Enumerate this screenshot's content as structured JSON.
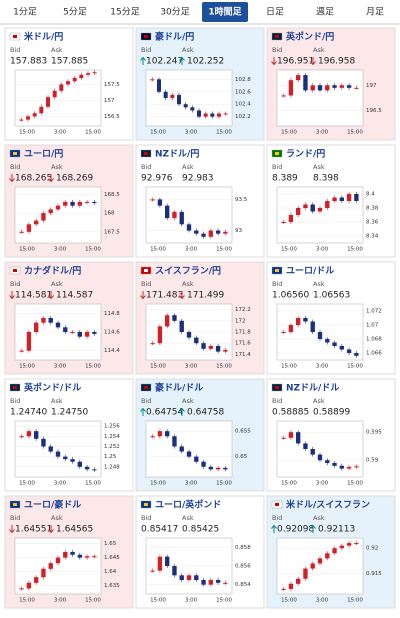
{
  "tabs": [
    {
      "label": "1分足"
    },
    {
      "label": "5分足"
    },
    {
      "label": "15分足"
    },
    {
      "label": "30分足"
    },
    {
      "label": "1時間足",
      "active": true
    },
    {
      "label": "日足"
    },
    {
      "label": "週足"
    },
    {
      "label": "月足"
    }
  ],
  "labels": {
    "bid": "Bid",
    "ask": "Ask"
  },
  "cards": [
    {
      "name": "米ドル/円",
      "bid": "157.883",
      "ask": "157.885",
      "trend": null,
      "ylim": [
        156.2,
        157.95
      ],
      "yticks": [
        157.5,
        157,
        156.5
      ],
      "xticks": [
        "15:00",
        "3:00",
        "15:00"
      ],
      "values": [
        156.4,
        156.5,
        156.6,
        156.8,
        157.1,
        157.3,
        157.5,
        157.6,
        157.7,
        157.8,
        157.85,
        157.88
      ]
    },
    {
      "name": "豪ドル/円",
      "bid": "102.247",
      "ask": "102.252",
      "trend": "up",
      "ylim": [
        102.05,
        102.95
      ],
      "yticks": [
        102.8,
        102.6,
        102.4,
        102.2
      ],
      "xticks": [
        "15:00",
        "3:00",
        "15:00"
      ],
      "values": [
        102.8,
        102.6,
        102.5,
        102.55,
        102.4,
        102.35,
        102.3,
        102.2,
        102.25,
        102.2,
        102.25,
        102.25
      ]
    },
    {
      "name": "英ポンド/円",
      "bid": "196.951",
      "ask": "196.958",
      "trend": "down",
      "ylim": [
        196.2,
        197.3
      ],
      "yticks": [
        197,
        196.5
      ],
      "xticks": [
        "15:00",
        "3:00",
        "15:00"
      ],
      "values": [
        196.8,
        197.1,
        197.2,
        196.9,
        197.0,
        196.9,
        197.0,
        196.95,
        197.0,
        196.95,
        196.95
      ]
    },
    {
      "name": "ユーロ/円",
      "bid": "168.265",
      "ask": "168.269",
      "trend": "down",
      "ylim": [
        167.2,
        168.7
      ],
      "yticks": [
        168.5,
        168,
        167.5
      ],
      "xticks": [
        "15:00",
        "3:00",
        "15:00"
      ],
      "values": [
        167.5,
        167.7,
        167.8,
        168.0,
        168.1,
        168.2,
        168.3,
        168.2,
        168.3,
        168.3,
        168.27
      ]
    },
    {
      "name": "NZドル/円",
      "bid": "92.976",
      "ask": "92.983",
      "trend": null,
      "ylim": [
        92.8,
        93.7
      ],
      "yticks": [
        93.5,
        93
      ],
      "xticks": [
        "15:00",
        "3:00",
        "15:00"
      ],
      "values": [
        93.5,
        93.4,
        93.2,
        93.3,
        93.1,
        93.0,
        92.95,
        92.9,
        93.0,
        92.95,
        92.98
      ]
    },
    {
      "name": "ランド/円",
      "bid": "8.389",
      "ask": "8.398",
      "trend": null,
      "ylim": [
        8.33,
        8.41
      ],
      "yticks": [
        8.4,
        8.38,
        8.36,
        8.34
      ],
      "xticks": [
        "15:00",
        "3:00",
        "15:00"
      ],
      "values": [
        8.36,
        8.37,
        8.38,
        8.385,
        8.375,
        8.38,
        8.39,
        8.395,
        8.39,
        8.4,
        8.39
      ]
    },
    {
      "name": "カナダドル/円",
      "bid": "114.581",
      "ask": "114.587",
      "trend": "down",
      "ylim": [
        114.3,
        114.9
      ],
      "yticks": [
        114.8,
        114.6,
        114.4
      ],
      "xticks": [
        "15:00",
        "3:00",
        "15:00"
      ],
      "values": [
        114.4,
        114.6,
        114.7,
        114.75,
        114.7,
        114.65,
        114.6,
        114.6,
        114.55,
        114.6,
        114.58
      ]
    },
    {
      "name": "スイスフラン/円",
      "bid": "171.483",
      "ask": "171.499",
      "trend": "down",
      "ylim": [
        171.3,
        172.3
      ],
      "yticks": [
        172.2,
        172,
        171.8,
        171.6,
        171.4
      ],
      "xticks": [
        "15:00",
        "3:00",
        "15:00"
      ],
      "values": [
        171.6,
        171.9,
        172.1,
        172.0,
        171.8,
        171.7,
        171.6,
        171.5,
        171.55,
        171.45,
        171.48
      ]
    },
    {
      "name": "ユーロ/ドル",
      "bid": "1.06560",
      "ask": "1.06563",
      "trend": null,
      "ylim": [
        1.065,
        1.073
      ],
      "yticks": [
        1.072,
        1.07,
        1.068,
        1.066
      ],
      "xticks": [
        "15:00",
        "3:00",
        "15:00"
      ],
      "values": [
        1.069,
        1.07,
        1.071,
        1.0705,
        1.069,
        1.068,
        1.0675,
        1.067,
        1.0665,
        1.066,
        1.0656
      ]
    },
    {
      "name": "英ポンド/ドル",
      "bid": "1.24740",
      "ask": "1.24750",
      "trend": null,
      "ylim": [
        1.246,
        1.257
      ],
      "yticks": [
        1.256,
        1.254,
        1.252,
        1.25,
        1.248
      ],
      "xticks": [
        "15:00",
        "3:00",
        "15:00"
      ],
      "values": [
        1.254,
        1.255,
        1.2535,
        1.252,
        1.251,
        1.25,
        1.2495,
        1.249,
        1.248,
        1.2475,
        1.2474
      ]
    },
    {
      "name": "豪ドル/ドル",
      "bid": "0.64754",
      "ask": "0.64758",
      "trend": "up",
      "ylim": [
        0.646,
        0.657
      ],
      "yticks": [
        0.655,
        0.65
      ],
      "xticks": [
        "15:00",
        "3:00",
        "15:00"
      ],
      "values": [
        0.654,
        0.655,
        0.654,
        0.652,
        0.651,
        0.65,
        0.649,
        0.648,
        0.6475,
        0.6478,
        0.6475
      ]
    },
    {
      "name": "NZドル/ドル",
      "bid": "0.58885",
      "ask": "0.58899",
      "trend": null,
      "ylim": [
        0.587,
        0.597
      ],
      "yticks": [
        0.595,
        0.59
      ],
      "xticks": [
        "15:00",
        "3:00",
        "15:00"
      ],
      "values": [
        0.594,
        0.595,
        0.593,
        0.592,
        0.591,
        0.59,
        0.5895,
        0.589,
        0.5885,
        0.5888,
        0.5889
      ]
    },
    {
      "name": "ユーロ/豪ドル",
      "bid": "1.64551",
      "ask": "1.64565",
      "trend": "down",
      "ylim": [
        1.632,
        1.652
      ],
      "yticks": [
        1.65,
        1.645,
        1.64,
        1.635
      ],
      "xticks": [
        "15:00",
        "3:00",
        "15:00"
      ],
      "values": [
        1.634,
        1.636,
        1.638,
        1.641,
        1.643,
        1.645,
        1.647,
        1.646,
        1.645,
        1.6455,
        1.6455
      ]
    },
    {
      "name": "ユーロ/英ポンド",
      "bid": "0.85417",
      "ask": "0.85425",
      "trend": null,
      "ylim": [
        0.853,
        0.859
      ],
      "yticks": [
        0.858,
        0.856,
        0.854
      ],
      "xticks": [
        "15:00",
        "3:00",
        "15:00"
      ],
      "values": [
        0.8555,
        0.857,
        0.856,
        0.855,
        0.8545,
        0.855,
        0.8545,
        0.854,
        0.8545,
        0.8542,
        0.8542
      ]
    },
    {
      "name": "米ドル/スイスフラン",
      "bid": "0.92098",
      "ask": "0.92113",
      "trend": "up",
      "ylim": [
        0.911,
        0.922
      ],
      "yticks": [
        0.92,
        0.915
      ],
      "xticks": [
        "15:00",
        "3:00",
        "15:00"
      ],
      "values": [
        0.912,
        0.913,
        0.914,
        0.916,
        0.917,
        0.918,
        0.919,
        0.92,
        0.9205,
        0.921,
        0.921
      ]
    }
  ]
}
